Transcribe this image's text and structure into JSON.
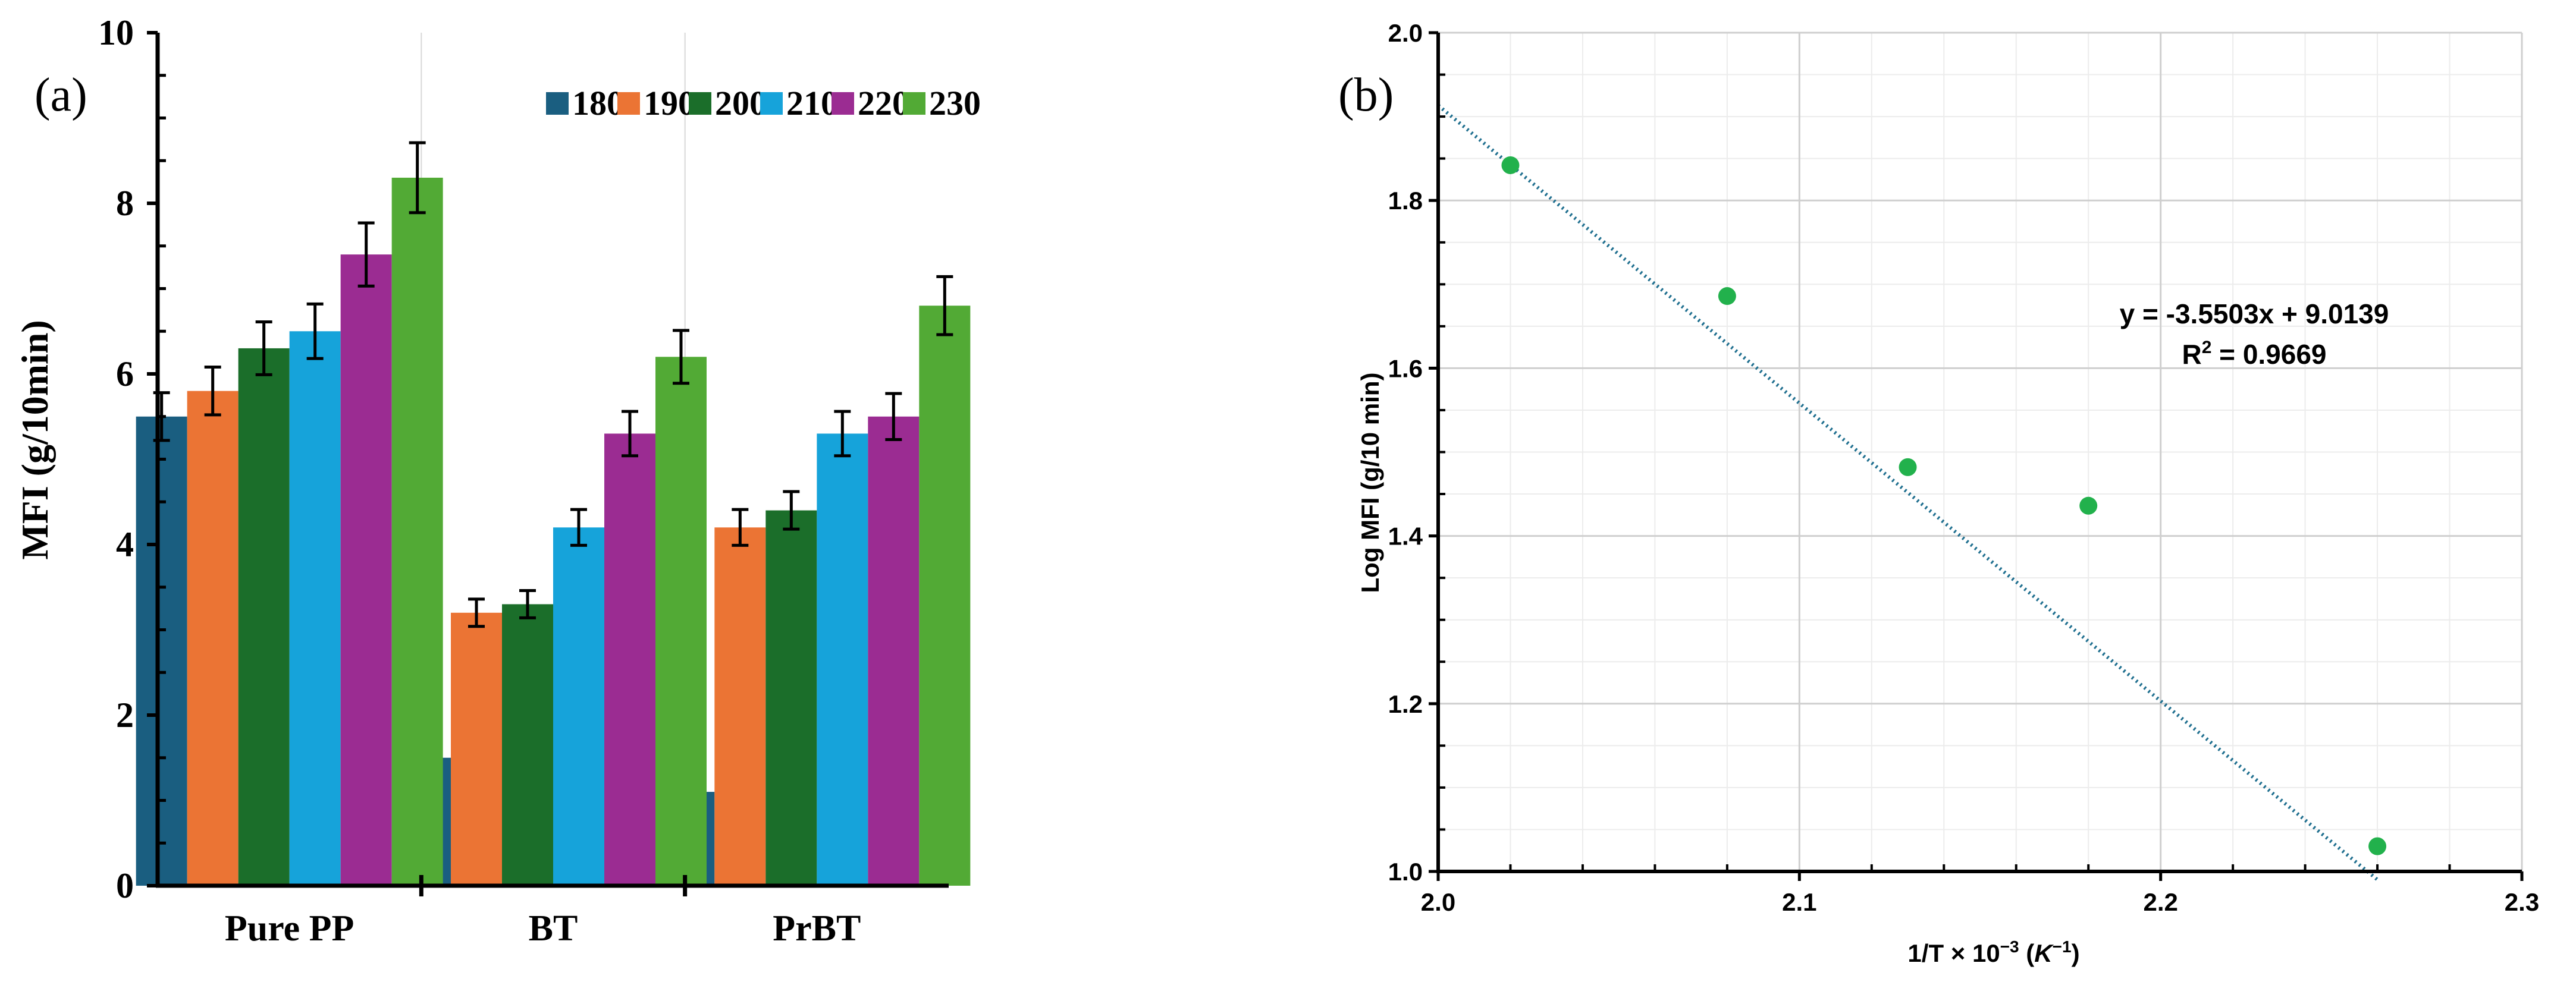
{
  "panel_a": {
    "label": "(a)",
    "chart_data": {
      "type": "bar",
      "categories": [
        "Pure PP",
        "BT",
        "PrBT"
      ],
      "series": [
        {
          "name": "180",
          "color": "#1a5e80",
          "values": [
            5.5,
            1.5,
            1.1
          ],
          "errors": [
            0.28,
            0.08,
            0.06
          ]
        },
        {
          "name": "190",
          "color": "#eb7434",
          "values": [
            5.8,
            3.2,
            4.2
          ],
          "errors": [
            0.28,
            0.16,
            0.21
          ]
        },
        {
          "name": "200",
          "color": "#1b6e2a",
          "values": [
            6.3,
            3.3,
            4.4
          ],
          "errors": [
            0.31,
            0.16,
            0.22
          ]
        },
        {
          "name": "210",
          "color": "#16a3da",
          "values": [
            6.5,
            4.2,
            5.3
          ],
          "errors": [
            0.32,
            0.21,
            0.26
          ]
        },
        {
          "name": "220",
          "color": "#9b2c92",
          "values": [
            7.4,
            5.3,
            5.5
          ],
          "errors": [
            0.37,
            0.26,
            0.27
          ]
        },
        {
          "name": "230",
          "color": "#52aa35",
          "values": [
            8.3,
            6.2,
            6.8
          ],
          "errors": [
            0.41,
            0.31,
            0.34
          ]
        }
      ],
      "ylabel": "MFI (g/10min)",
      "ylim": [
        0,
        10
      ],
      "yticks": [
        "0",
        "2",
        "4",
        "6",
        "8",
        "10"
      ],
      "legend": "top-right",
      "grid": true
    }
  },
  "panel_b": {
    "label": "(b)",
    "chart_data": {
      "type": "scatter",
      "x": [
        2.02,
        2.08,
        2.13,
        2.18,
        2.26
      ],
      "y": [
        1.842,
        1.686,
        1.482,
        1.436,
        1.03
      ],
      "point_color": "#22b14c",
      "trendline": {
        "slope": -3.5503,
        "intercept": 9.0139,
        "x_range": [
          2.0,
          2.26
        ],
        "color": "#1f6f8f"
      },
      "equation": "y = -3.5503x + 9.0139",
      "r2_text": "R",
      "r2_sup": "2",
      "r2_value": " = 0.9669",
      "xlabel": "1/T × 10",
      "xlabel_sup": "−3",
      "xlabel_unit_open": " (",
      "xlabel_unit": "K",
      "xlabel_unit_sup": "−1",
      "xlabel_unit_close": ")",
      "ylabel": "Log MFI (g/10 min)",
      "xlim": [
        2.0,
        2.3
      ],
      "ylim": [
        1.0,
        2.0
      ],
      "xticks": [
        "2.0",
        "2.1",
        "2.2",
        "2.3"
      ],
      "yticks": [
        "1.0",
        "1.2",
        "1.4",
        "1.6",
        "1.8",
        "2.0"
      ],
      "grid": true
    }
  }
}
